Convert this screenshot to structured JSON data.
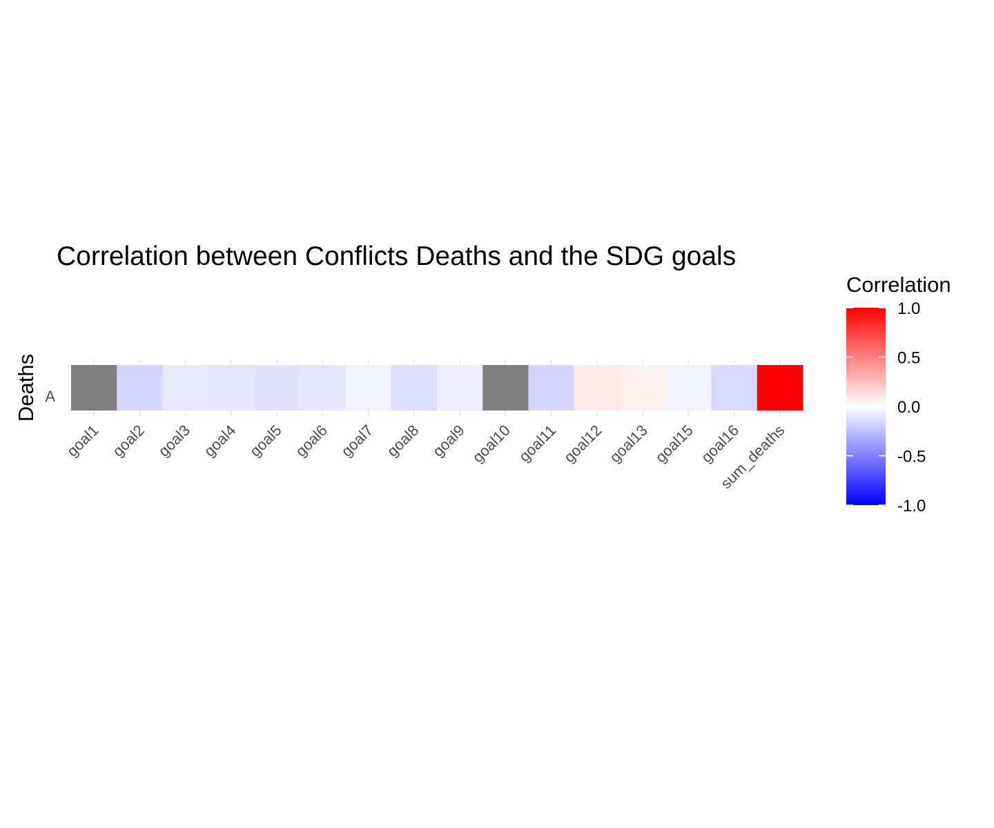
{
  "chart_data": {
    "type": "heatmap",
    "title": "Correlation between Conflicts Deaths and the SDG goals",
    "ylabel": "Deaths",
    "xlabel": "",
    "y_categories": [
      "A"
    ],
    "x_categories": [
      "goal1",
      "goal2",
      "goal3",
      "goal4",
      "goal5",
      "goal6",
      "goal7",
      "goal8",
      "goal9",
      "goal10",
      "goal11",
      "goal12",
      "goal13",
      "goal15",
      "goal16",
      "sum_deaths"
    ],
    "values": [
      null,
      -0.17,
      -0.09,
      -0.1,
      -0.11,
      -0.1,
      -0.05,
      -0.13,
      -0.07,
      null,
      -0.17,
      0.09,
      0.06,
      -0.05,
      -0.15,
      1.0
    ],
    "na_color": "#808080",
    "legend": {
      "title": "Correlation",
      "placement": "right",
      "ticks": [
        "1.0",
        "0.5",
        "0.0",
        "-0.5",
        "-1.0"
      ],
      "tick_values": [
        1.0,
        0.5,
        0.0,
        -0.5,
        -1.0
      ],
      "range": [
        -1,
        1
      ],
      "low_color": "#0000ff",
      "mid_color": "#ffffff",
      "high_color": "#ff0000"
    }
  }
}
